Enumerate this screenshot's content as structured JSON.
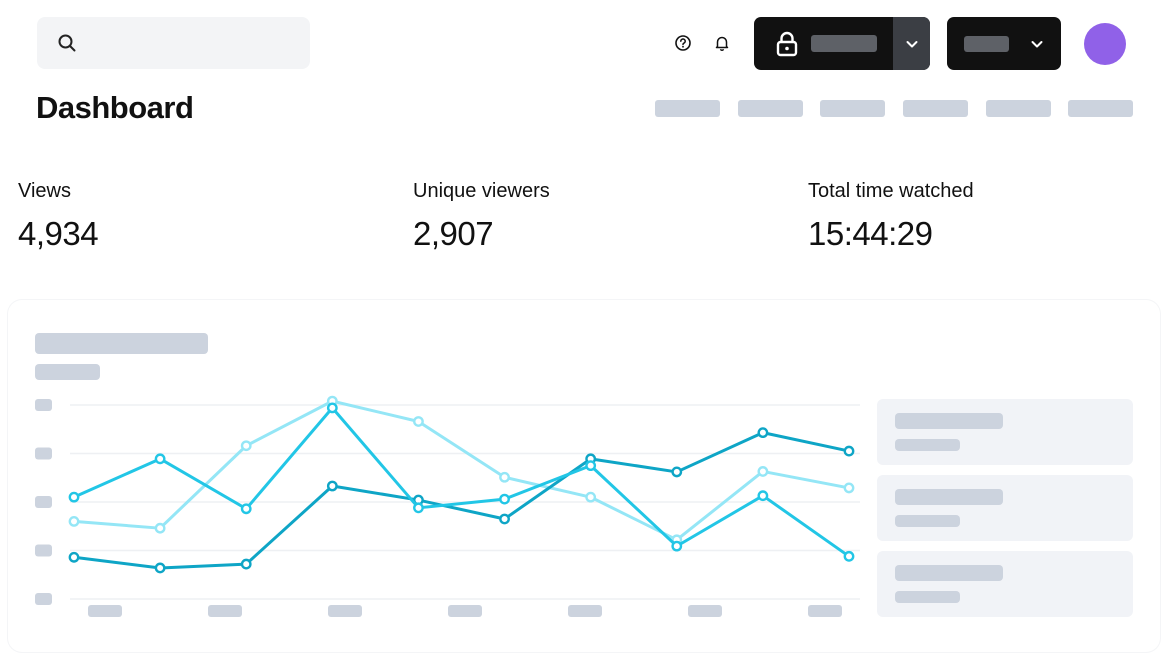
{
  "search": {
    "placeholder": ""
  },
  "icons": {
    "search": "search-icon",
    "help": "help-circle-icon",
    "bell": "bell-icon",
    "lock": "lock-icon",
    "chevron": "chevron-down-icon"
  },
  "page": {
    "title": "Dashboard"
  },
  "stats": [
    {
      "label": "Views",
      "value": "4,934"
    },
    {
      "label": "Unique viewers",
      "value": "2,907"
    },
    {
      "label": "Total time watched",
      "value": "15:44:29"
    }
  ],
  "colors": {
    "series_a": "#0ea5c6",
    "series_b": "#22c6e6",
    "series_c": "#94e6f6",
    "avatar": "#9061e8",
    "placeholder": "#ccd3de"
  },
  "chart_data": {
    "type": "line",
    "title": "",
    "xlabel": "",
    "ylabel": "",
    "categories": [
      "",
      "",
      "",
      "",
      "",
      "",
      "",
      "",
      "",
      ""
    ],
    "ylim": [
      0,
      4
    ],
    "grid": true,
    "legend": "right",
    "series": [
      {
        "values": [
          0.86,
          0.64,
          0.72,
          2.33,
          2.04,
          1.65,
          2.89,
          2.62,
          3.43,
          3.05
        ]
      },
      {
        "values": [
          2.1,
          2.89,
          1.86,
          3.94,
          1.88,
          2.06,
          2.75,
          1.09,
          2.13,
          0.88
        ]
      },
      {
        "values": [
          1.6,
          1.46,
          3.16,
          4.08,
          3.66,
          2.51,
          2.1,
          1.22,
          2.63,
          2.29
        ]
      }
    ]
  }
}
